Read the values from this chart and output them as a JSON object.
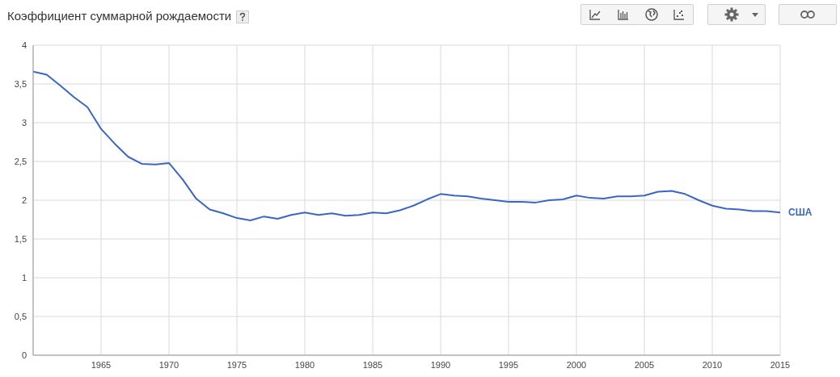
{
  "chart_data": {
    "type": "line",
    "title": "Коэффициент суммарной рождаемости",
    "x": [
      1960,
      1961,
      1962,
      1963,
      1964,
      1965,
      1966,
      1967,
      1968,
      1969,
      1970,
      1971,
      1972,
      1973,
      1974,
      1975,
      1976,
      1977,
      1978,
      1979,
      1980,
      1981,
      1982,
      1983,
      1984,
      1985,
      1986,
      1987,
      1988,
      1989,
      1990,
      1991,
      1992,
      1993,
      1994,
      1995,
      1996,
      1997,
      1998,
      1999,
      2000,
      2001,
      2002,
      2003,
      2004,
      2005,
      2006,
      2007,
      2008,
      2009,
      2010,
      2011,
      2012,
      2013,
      2014,
      2015
    ],
    "series": [
      {
        "name": "США",
        "color": "#3a66c5",
        "values": [
          3.66,
          3.62,
          3.48,
          3.33,
          3.2,
          2.92,
          2.73,
          2.56,
          2.47,
          2.46,
          2.48,
          2.27,
          2.02,
          1.88,
          1.83,
          1.77,
          1.74,
          1.79,
          1.76,
          1.81,
          1.84,
          1.81,
          1.83,
          1.8,
          1.81,
          1.84,
          1.83,
          1.87,
          1.93,
          2.01,
          2.08,
          2.06,
          2.05,
          2.02,
          2.0,
          1.98,
          1.98,
          1.97,
          2.0,
          2.01,
          2.06,
          2.03,
          2.02,
          2.05,
          2.05,
          2.06,
          2.11,
          2.12,
          2.08,
          2.0,
          1.93,
          1.89,
          1.88,
          1.86,
          1.86,
          1.84
        ]
      }
    ],
    "xlim": [
      1960,
      2015
    ],
    "xticks": [
      1965,
      1970,
      1975,
      1980,
      1985,
      1990,
      1995,
      2000,
      2005,
      2010,
      2015
    ],
    "ylim": [
      0,
      4
    ],
    "yticks": [
      0,
      {
        "value": 0.5,
        "label": "0,5"
      },
      1,
      {
        "value": 1.5,
        "label": "1,5"
      },
      2,
      {
        "value": 2.5,
        "label": "2,5"
      },
      3,
      {
        "value": 3.5,
        "label": "3,5"
      },
      4
    ],
    "grid": true,
    "marker": "none",
    "line_style": "solid"
  }
}
